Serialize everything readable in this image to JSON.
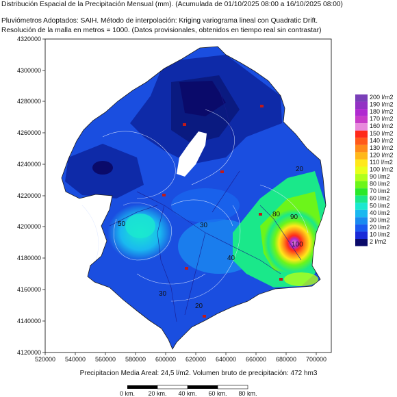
{
  "header": {
    "line1": "Distribución Espacial de la Precipitación Mensual (mm). (Acumulada de 01/10/2025 08:00 a 16/10/2025 08:00)",
    "line2": "Pluviómetros Adoptados: SAIH.  Método de interpolación: Kriging variograma lineal con Quadratic Drift.",
    "line3": "Resolución de la malla en metros = 1000. (Datos provisionales, obtenidos en tiempo real sin contrastar)"
  },
  "axes": {
    "y_ticks": [
      "4320000",
      "4300000",
      "4280000",
      "4260000",
      "4240000",
      "4220000",
      "4200000",
      "4180000",
      "4160000",
      "4140000",
      "4120000"
    ],
    "x_ticks": [
      "520000",
      "540000",
      "560000",
      "580000",
      "600000",
      "620000",
      "640000",
      "660000",
      "680000",
      "700000"
    ]
  },
  "legend": {
    "items": [
      {
        "label": "200 l/m2",
        "color": "#7a3fb8"
      },
      {
        "label": "190 l/m2",
        "color": "#9332c4"
      },
      {
        "label": "180 l/m2",
        "color": "#b02ad0"
      },
      {
        "label": "170 l/m2",
        "color": "#c83cc8"
      },
      {
        "label": "160 l/m2",
        "color": "#e88adc"
      },
      {
        "label": "150 l/m2",
        "color": "#ff2a1a"
      },
      {
        "label": "140 l/m2",
        "color": "#ff5a1a"
      },
      {
        "label": "130 l/m2",
        "color": "#ff8a1a"
      },
      {
        "label": "120 l/m2",
        "color": "#ffb81a"
      },
      {
        "label": "110 l/m2",
        "color": "#ffe81a"
      },
      {
        "label": "100 l/m2",
        "color": "#e8ff1a"
      },
      {
        "label": "90 l/m2",
        "color": "#b0ff1a"
      },
      {
        "label": "80 l/m2",
        "color": "#6cf51a"
      },
      {
        "label": "70 l/m2",
        "color": "#2ae82a"
      },
      {
        "label": "60 l/m2",
        "color": "#1ae88a"
      },
      {
        "label": "50 l/m2",
        "color": "#1ae8d0"
      },
      {
        "label": "40 l/m2",
        "color": "#1ab8f0"
      },
      {
        "label": "30 l/m2",
        "color": "#1a8af0"
      },
      {
        "label": "20 l/m2",
        "color": "#1a5af0"
      },
      {
        "label": "10 l/m2",
        "color": "#1a2ad8"
      },
      {
        "label": "2 l/m2",
        "color": "#0a0a6a"
      }
    ]
  },
  "contour_labels": [
    "10",
    "20",
    "30",
    "40",
    "50",
    "60",
    "80",
    "90",
    "100",
    "40",
    "20",
    "30"
  ],
  "footer": {
    "summary": "Precipitacion Media Areal: 24,5 l/m2. Volumen bruto de precipitación: 472 hm3"
  },
  "scale_bar": {
    "labels": [
      "0 km.",
      "20 km.",
      "40 km.",
      "60 km.",
      "80 km."
    ]
  }
}
